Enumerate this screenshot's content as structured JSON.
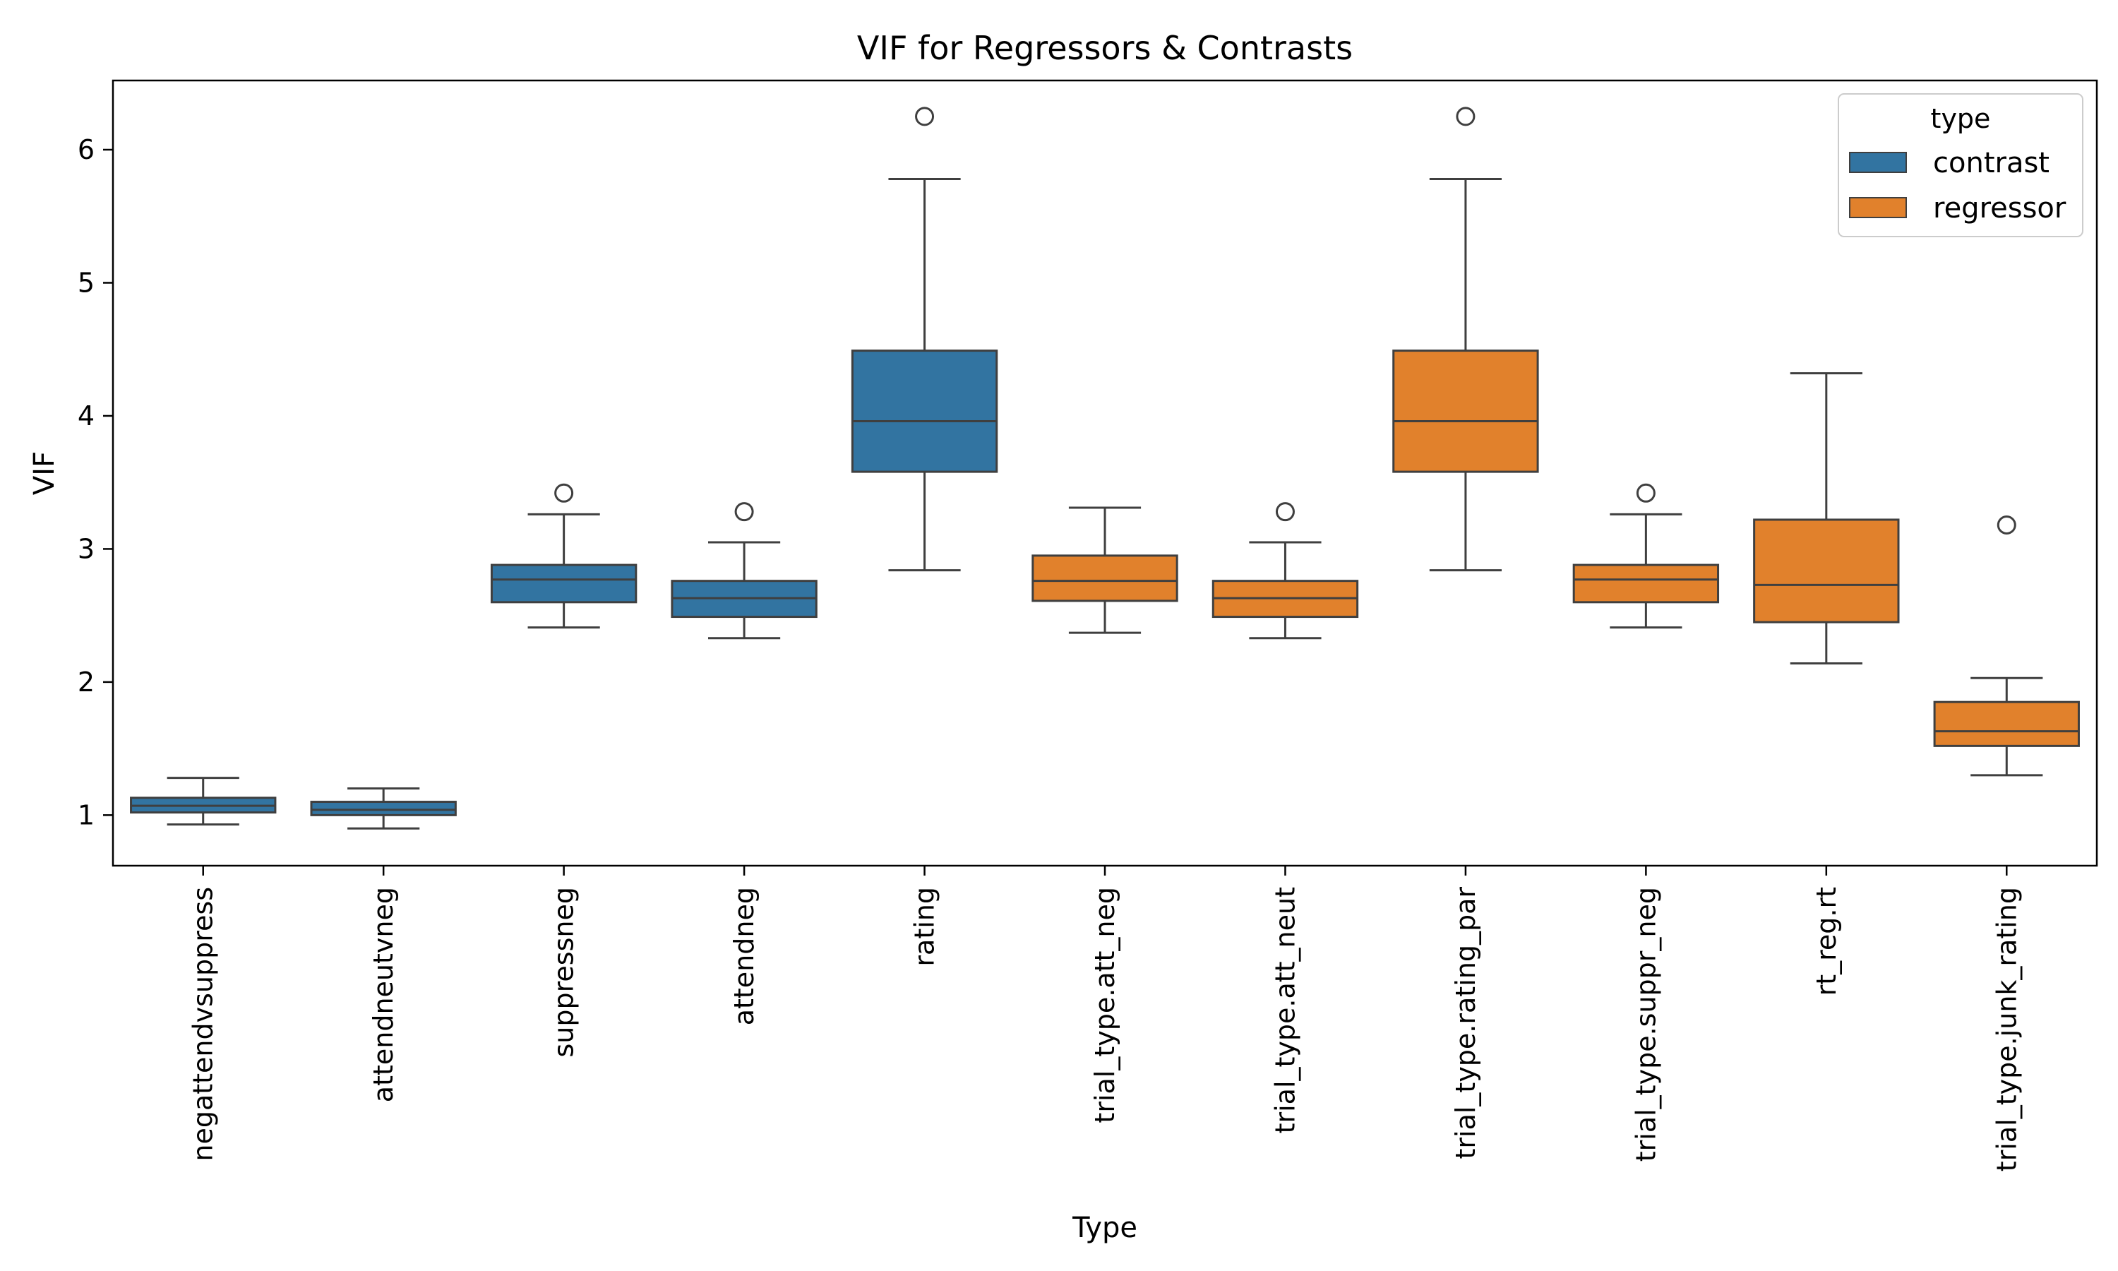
{
  "chart_data": {
    "type": "box",
    "title": "VIF for Regressors & Contrasts",
    "xlabel": "Type",
    "ylabel": "VIF",
    "ylim": [
      0.62,
      6.52
    ],
    "yticks": [
      1,
      2,
      3,
      4,
      5,
      6
    ],
    "grid": false,
    "legend": {
      "title": "type",
      "placement": "top-right",
      "entries": [
        {
          "label": "contrast",
          "color": "#3274a1"
        },
        {
          "label": "regressor",
          "color": "#e1812c"
        }
      ]
    },
    "edge_color": "#3f3f3f",
    "boxes": [
      {
        "category": "negattendvsuppress",
        "group": "contrast",
        "whisker_low": 0.93,
        "q1": 1.02,
        "median": 1.07,
        "q3": 1.13,
        "whisker_high": 1.28,
        "outliers": []
      },
      {
        "category": "attendneutvneg",
        "group": "contrast",
        "whisker_low": 0.9,
        "q1": 1.0,
        "median": 1.04,
        "q3": 1.1,
        "whisker_high": 1.2,
        "outliers": []
      },
      {
        "category": "suppressneg",
        "group": "contrast",
        "whisker_low": 2.41,
        "q1": 2.6,
        "median": 2.77,
        "q3": 2.88,
        "whisker_high": 3.26,
        "outliers": [
          3.42
        ]
      },
      {
        "category": "attendneg",
        "group": "contrast",
        "whisker_low": 2.33,
        "q1": 2.49,
        "median": 2.63,
        "q3": 2.76,
        "whisker_high": 3.05,
        "outliers": [
          3.28
        ]
      },
      {
        "category": "rating",
        "group": "contrast",
        "whisker_low": 2.84,
        "q1": 3.58,
        "median": 3.96,
        "q3": 4.49,
        "whisker_high": 5.78,
        "outliers": [
          6.25
        ]
      },
      {
        "category": "trial_type.att_neg",
        "group": "regressor",
        "whisker_low": 2.37,
        "q1": 2.61,
        "median": 2.76,
        "q3": 2.95,
        "whisker_high": 3.31,
        "outliers": []
      },
      {
        "category": "trial_type.att_neut",
        "group": "regressor",
        "whisker_low": 2.33,
        "q1": 2.49,
        "median": 2.63,
        "q3": 2.76,
        "whisker_high": 3.05,
        "outliers": [
          3.28
        ]
      },
      {
        "category": "trial_type.rating_par",
        "group": "regressor",
        "whisker_low": 2.84,
        "q1": 3.58,
        "median": 3.96,
        "q3": 4.49,
        "whisker_high": 5.78,
        "outliers": [
          6.25
        ]
      },
      {
        "category": "trial_type.suppr_neg",
        "group": "regressor",
        "whisker_low": 2.41,
        "q1": 2.6,
        "median": 2.77,
        "q3": 2.88,
        "whisker_high": 3.26,
        "outliers": [
          3.42
        ]
      },
      {
        "category": "rt_reg.rt",
        "group": "regressor",
        "whisker_low": 2.14,
        "q1": 2.45,
        "median": 2.73,
        "q3": 3.22,
        "whisker_high": 4.32,
        "outliers": []
      },
      {
        "category": "trial_type.junk_rating",
        "group": "regressor",
        "whisker_low": 1.3,
        "q1": 1.52,
        "median": 1.63,
        "q3": 1.85,
        "whisker_high": 2.03,
        "outliers": [
          3.18
        ]
      }
    ]
  }
}
